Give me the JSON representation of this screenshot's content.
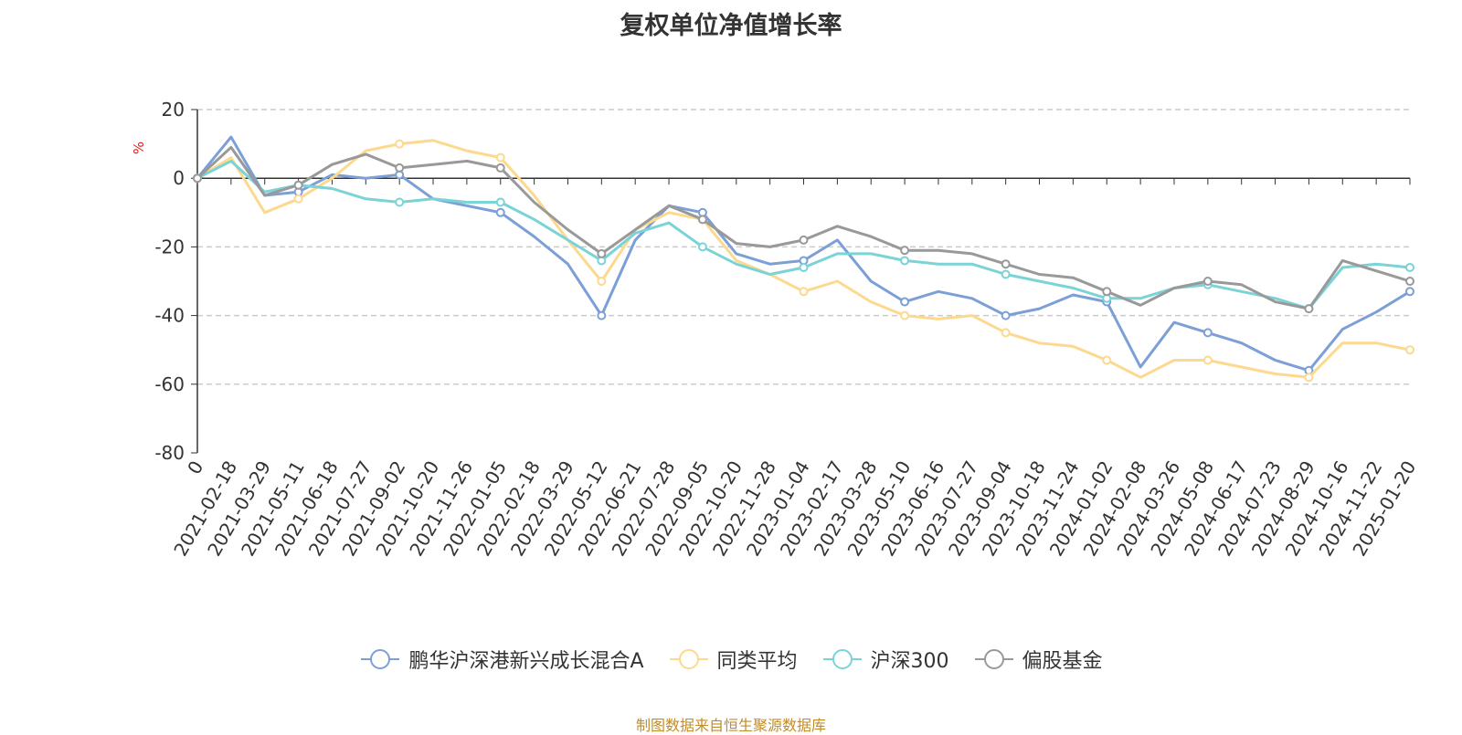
{
  "footer": "制图数据来自恒生聚源数据库",
  "chart_data": {
    "type": "line",
    "title": "复权单位净值增长率",
    "ylabel": "%",
    "xlabel": "",
    "ylim": [
      -80,
      20
    ],
    "yticks": [
      20,
      0,
      -20,
      -40,
      -60,
      -80
    ],
    "grid": true,
    "legend_position": "bottom",
    "x": [
      "0",
      "2021-02-18",
      "2021-03-29",
      "2021-05-11",
      "2021-06-18",
      "2021-07-27",
      "2021-09-02",
      "2021-10-20",
      "2021-11-26",
      "2022-01-05",
      "2022-02-18",
      "2022-03-29",
      "2022-05-12",
      "2022-06-21",
      "2022-07-28",
      "2022-09-05",
      "2022-10-20",
      "2022-11-28",
      "2023-01-04",
      "2023-02-17",
      "2023-03-28",
      "2023-05-10",
      "2023-06-16",
      "2023-07-27",
      "2023-09-04",
      "2023-10-18",
      "2023-11-24",
      "2024-01-02",
      "2024-02-08",
      "2024-03-26",
      "2024-05-08",
      "2024-06-17",
      "2024-07-23",
      "2024-08-29",
      "2024-10-16",
      "2024-11-22",
      "2025-01-20"
    ],
    "series": [
      {
        "name": "鹏华沪深港新兴成长混合A",
        "color": "#7b9fd6",
        "values": [
          0,
          12,
          -5,
          -4,
          1,
          0,
          1,
          -6,
          -8,
          -10,
          -17,
          -25,
          -40,
          -18,
          -8,
          -10,
          -22,
          -25,
          -24,
          -18,
          -30,
          -36,
          -33,
          -35,
          -40,
          -38,
          -34,
          -36,
          -55,
          -42,
          -45,
          -48,
          -53,
          -56,
          -44,
          -39,
          -33
        ]
      },
      {
        "name": "同类平均",
        "color": "#fcd98e",
        "values": [
          0,
          6,
          -10,
          -6,
          0,
          8,
          10,
          11,
          8,
          6,
          -5,
          -18,
          -30,
          -15,
          -10,
          -12,
          -24,
          -28,
          -33,
          -30,
          -36,
          -40,
          -41,
          -40,
          -45,
          -48,
          -49,
          -53,
          -58,
          -53,
          -53,
          -55,
          -57,
          -58,
          -48,
          -48,
          -50
        ]
      },
      {
        "name": "沪深300",
        "color": "#7ad3d6",
        "values": [
          0,
          5,
          -4,
          -2,
          -3,
          -6,
          -7,
          -6,
          -7,
          -7,
          -12,
          -18,
          -24,
          -16,
          -13,
          -20,
          -25,
          -28,
          -26,
          -22,
          -22,
          -24,
          -25,
          -25,
          -28,
          -30,
          -32,
          -35,
          -35,
          -32,
          -31,
          -33,
          -35,
          -38,
          -26,
          -25,
          -26
        ]
      },
      {
        "name": "偏股基金",
        "color": "#999999",
        "values": [
          0,
          9,
          -5,
          -2,
          4,
          7,
          3,
          4,
          5,
          3,
          -7,
          -15,
          -22,
          -15,
          -8,
          -12,
          -19,
          -20,
          -18,
          -14,
          -17,
          -21,
          -21,
          -22,
          -25,
          -28,
          -29,
          -33,
          -37,
          -32,
          -30,
          -31,
          -36,
          -38,
          -24,
          -27,
          -30
        ]
      }
    ]
  }
}
